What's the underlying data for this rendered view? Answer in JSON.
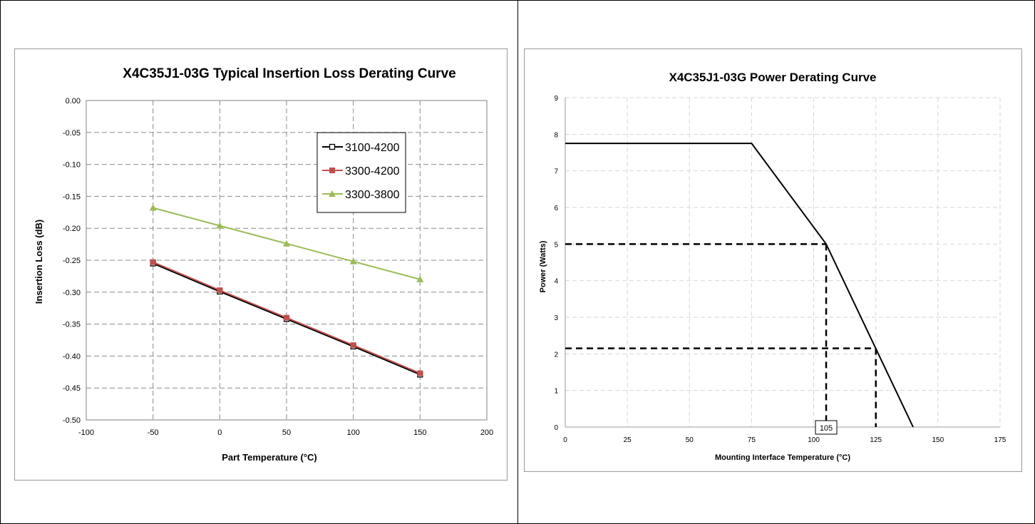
{
  "charts": [
    {
      "type": "line",
      "title": "X4C35J1-03G Typical Insertion Loss Derating Curve",
      "xlabel": "Part Temperature (°C)",
      "ylabel": "Insertion Loss (dB)",
      "xlim": [
        -100,
        200
      ],
      "ylim": [
        -0.5,
        0.0
      ],
      "x_ticks": [
        -100,
        -50,
        0,
        50,
        100,
        150,
        200
      ],
      "y_ticks": [
        0.0,
        -0.05,
        -0.1,
        -0.15,
        -0.2,
        -0.25,
        -0.3,
        -0.35,
        -0.4,
        -0.45,
        -0.5
      ],
      "x_tick_labels": [
        "-100",
        "-50",
        "0",
        "50",
        "100",
        "150",
        "200"
      ],
      "y_tick_labels": [
        "0.00",
        "-0.05",
        "-0.10",
        "-0.15",
        "-0.20",
        "-0.25",
        "-0.30",
        "-0.35",
        "-0.40",
        "-0.45",
        "-0.50"
      ],
      "grid": true,
      "legend_position": "right",
      "x": [
        -50,
        0,
        50,
        100,
        150
      ],
      "series": [
        {
          "name": "3100-4200",
          "color": "#000000",
          "marker": "square-open",
          "values": [
            -0.255,
            -0.299,
            -0.342,
            -0.385,
            -0.429
          ]
        },
        {
          "name": "3300-4200",
          "color": "#c0504d",
          "marker": "square",
          "values": [
            -0.253,
            -0.297,
            -0.34,
            -0.383,
            -0.427
          ]
        },
        {
          "name": "3300-3800",
          "color": "#9bbb59",
          "marker": "triangle",
          "values": [
            -0.168,
            -0.196,
            -0.224,
            -0.252,
            -0.28
          ]
        }
      ]
    },
    {
      "type": "line",
      "title": "X4C35J1-03G Power Derating Curve",
      "xlabel": "Mounting Interface Temperature (°C)",
      "ylabel": "Power (Watts)",
      "xlim": [
        0,
        175
      ],
      "ylim": [
        0,
        9
      ],
      "x_ticks": [
        0,
        25,
        50,
        75,
        100,
        125,
        150,
        175
      ],
      "y_ticks": [
        0,
        1,
        2,
        3,
        4,
        5,
        6,
        7,
        8,
        9
      ],
      "x_tick_labels": [
        "0",
        "25",
        "50",
        "75",
        "100",
        "125",
        "150",
        "175"
      ],
      "y_tick_labels": [
        "0",
        "1",
        "2",
        "3",
        "4",
        "5",
        "6",
        "7",
        "8",
        "9"
      ],
      "grid": true,
      "series": [
        {
          "color": "#000000",
          "x": [
            0,
            75,
            105,
            140
          ],
          "values": [
            7.75,
            7.75,
            5.0,
            0.0
          ]
        }
      ],
      "reference_lines": [
        {
          "x": 105,
          "y": 5.0
        },
        {
          "x": 125,
          "y": 2.15
        }
      ],
      "annotation": {
        "x": 105,
        "text": "105"
      }
    }
  ]
}
